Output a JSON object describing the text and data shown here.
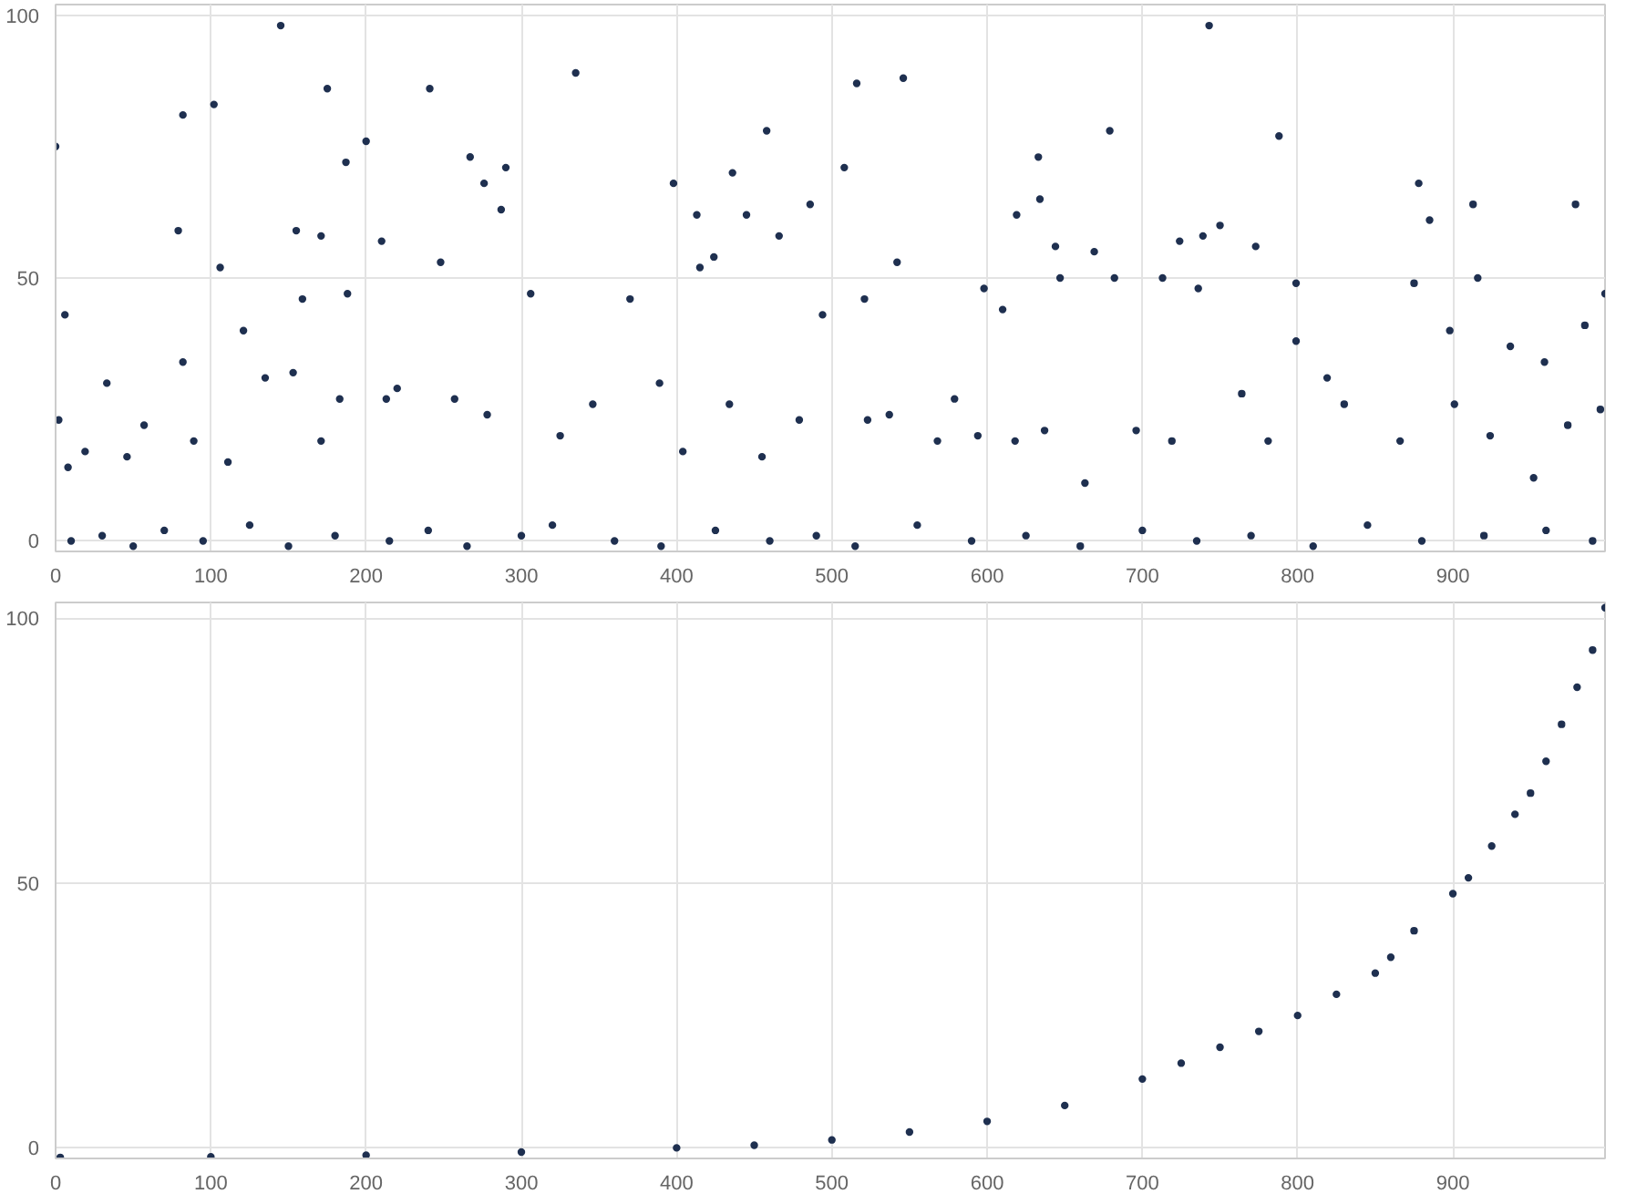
{
  "chart_data": [
    {
      "type": "scatter",
      "marker": "circle",
      "grid": true,
      "xlim": [
        0,
        998
      ],
      "ylim": [
        -2,
        102
      ],
      "xticks": [
        0,
        100,
        200,
        300,
        400,
        500,
        600,
        700,
        800,
        900
      ],
      "yticks": [
        0,
        50,
        100
      ],
      "series": [
        {
          "color": "#1f3050",
          "x": [
            0,
            6,
            2,
            79,
            82,
            82,
            102,
            106,
            145,
            155,
            159,
            171,
            175,
            187,
            188,
            200,
            210,
            241,
            248,
            267,
            276,
            290,
            287,
            306,
            335,
            370,
            398,
            413,
            415,
            424,
            436,
            445,
            458,
            466,
            486,
            508,
            516,
            521,
            546,
            542,
            598,
            610,
            619,
            633,
            634,
            644,
            647,
            679,
            669,
            682,
            713,
            724,
            736,
            743,
            739,
            750,
            773,
            788,
            799,
            799,
            875,
            878,
            885,
            898,
            913,
            916,
            937,
            959,
            979,
            998,
            985,
            995,
            8,
            19,
            33,
            46,
            57,
            89,
            111,
            121,
            135,
            153,
            171,
            183,
            213,
            220,
            257,
            278,
            325,
            346,
            389,
            404,
            434,
            455,
            479,
            494,
            523,
            537,
            568,
            579,
            594,
            618,
            637,
            663,
            696,
            719,
            764,
            781,
            819,
            830,
            866,
            901,
            924,
            952,
            974,
            10,
            30,
            50,
            70,
            95,
            125,
            150,
            180,
            215,
            240,
            265,
            300,
            320,
            360,
            390,
            425,
            460,
            490,
            515,
            555,
            590,
            625,
            660,
            700,
            735,
            770,
            810,
            845,
            880,
            920,
            960,
            990
          ],
          "values": [
            75,
            43,
            23,
            59,
            34,
            81,
            83,
            52,
            98,
            59,
            46,
            58,
            86,
            72,
            47,
            76,
            57,
            86,
            53,
            73,
            68,
            71,
            63,
            47,
            89,
            46,
            68,
            62,
            52,
            54,
            70,
            62,
            78,
            58,
            64,
            71,
            87,
            46,
            88,
            53,
            48,
            44,
            62,
            73,
            65,
            56,
            50,
            78,
            55,
            50,
            50,
            57,
            48,
            98,
            58,
            60,
            56,
            77,
            49,
            38,
            49,
            68,
            61,
            40,
            64,
            50,
            37,
            34,
            64,
            47,
            41,
            25,
            14,
            17,
            30,
            16,
            22,
            19,
            15,
            40,
            31,
            32,
            19,
            27,
            27,
            29,
            27,
            24,
            20,
            26,
            30,
            17,
            26,
            16,
            23,
            43,
            23,
            24,
            19,
            27,
            20,
            19,
            21,
            11,
            21,
            19,
            28,
            19,
            31,
            26,
            19,
            26,
            20,
            12,
            22,
            0,
            1,
            -1,
            2,
            0,
            3,
            -1,
            1,
            0,
            2,
            -1,
            1,
            3,
            0,
            -1,
            2,
            0,
            1,
            -1,
            3,
            0,
            1,
            -1,
            2,
            0,
            1,
            -1,
            3,
            0,
            1,
            2,
            0
          ]
        }
      ]
    },
    {
      "type": "scatter",
      "marker": "circle",
      "grid": true,
      "xlim": [
        0,
        998
      ],
      "ylim": [
        -2,
        103
      ],
      "xticks": [
        0,
        100,
        200,
        300,
        400,
        500,
        600,
        700,
        800,
        900
      ],
      "yticks": [
        0,
        50,
        100
      ],
      "series": [
        {
          "color": "#1f3050",
          "x": [
            3,
            100,
            200,
            300,
            400,
            450,
            500,
            550,
            600,
            650,
            700,
            725,
            750,
            775,
            800,
            825,
            850,
            860,
            875,
            900,
            910,
            925,
            940,
            950,
            960,
            970,
            980,
            990,
            998
          ],
          "values": [
            -1.8,
            -1.7,
            -1.4,
            -0.8,
            0,
            0.5,
            1.5,
            3,
            5,
            8,
            13,
            16,
            19,
            22,
            25,
            29,
            33,
            36,
            41,
            48,
            51,
            57,
            63,
            67,
            73,
            80,
            87,
            94,
            102
          ]
        }
      ]
    }
  ]
}
